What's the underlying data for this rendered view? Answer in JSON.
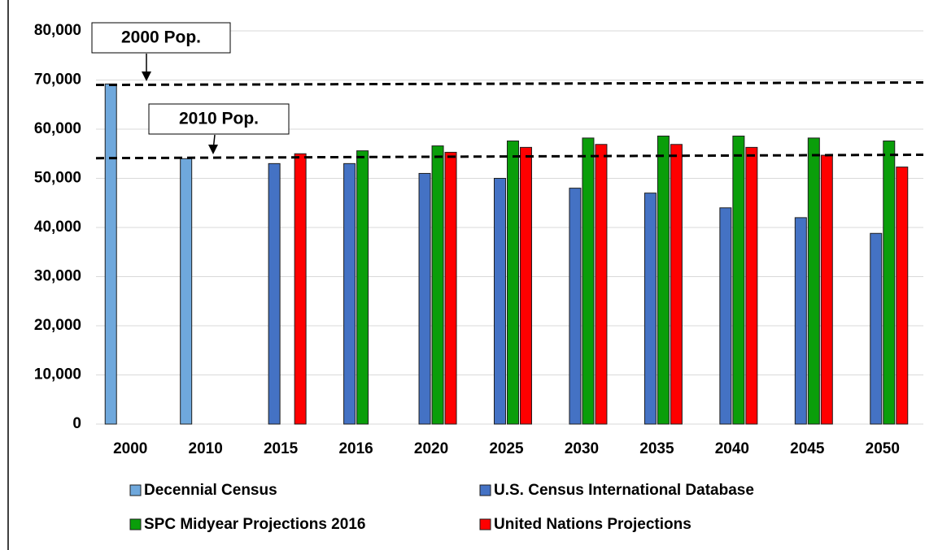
{
  "chart_data": {
    "type": "bar",
    "categories": [
      "2000",
      "2010",
      "2015",
      "2016",
      "2020",
      "2025",
      "2030",
      "2035",
      "2040",
      "2045",
      "2050"
    ],
    "series": [
      {
        "name": "Decennial Census",
        "color": "#6fa8dc",
        "values": [
          69200,
          54000,
          null,
          null,
          null,
          null,
          null,
          null,
          null,
          null,
          null
        ]
      },
      {
        "name": "U.S. Census International Database",
        "color": "#4472c4",
        "values": [
          null,
          null,
          53000,
          53000,
          51000,
          50000,
          48000,
          47000,
          44000,
          42000,
          38800
        ]
      },
      {
        "name": "SPC Midyear Projections 2016",
        "color": "#0a9e0a",
        "values": [
          null,
          null,
          null,
          55600,
          56600,
          57600,
          58200,
          58600,
          58600,
          58200,
          57600
        ]
      },
      {
        "name": "United Nations Projections",
        "color": "#ff0000",
        "values": [
          null,
          null,
          55000,
          null,
          55300,
          56300,
          56900,
          56900,
          56300,
          54700,
          52300
        ]
      }
    ],
    "ylim": [
      0,
      80000
    ],
    "yticks": [
      0,
      {
        "value": 10000,
        "label": "10,000"
      },
      {
        "value": 20000,
        "label": "20,000"
      },
      {
        "value": 30000,
        "label": "30,000"
      },
      {
        "value": 40000,
        "label": "40,000"
      },
      {
        "value": 50000,
        "label": "50,000"
      },
      {
        "value": 60000,
        "label": "60,000"
      },
      {
        "value": 70000,
        "label": "70,000"
      },
      {
        "value": 80000,
        "label": "80,000"
      }
    ],
    "grid": true,
    "legend": "bottom",
    "reference_lines": [
      {
        "label": "2000 Pop.",
        "values": [
          69000,
          69500
        ]
      },
      {
        "label": "2010 Pop.",
        "values": [
          54100,
          54800
        ]
      }
    ]
  }
}
